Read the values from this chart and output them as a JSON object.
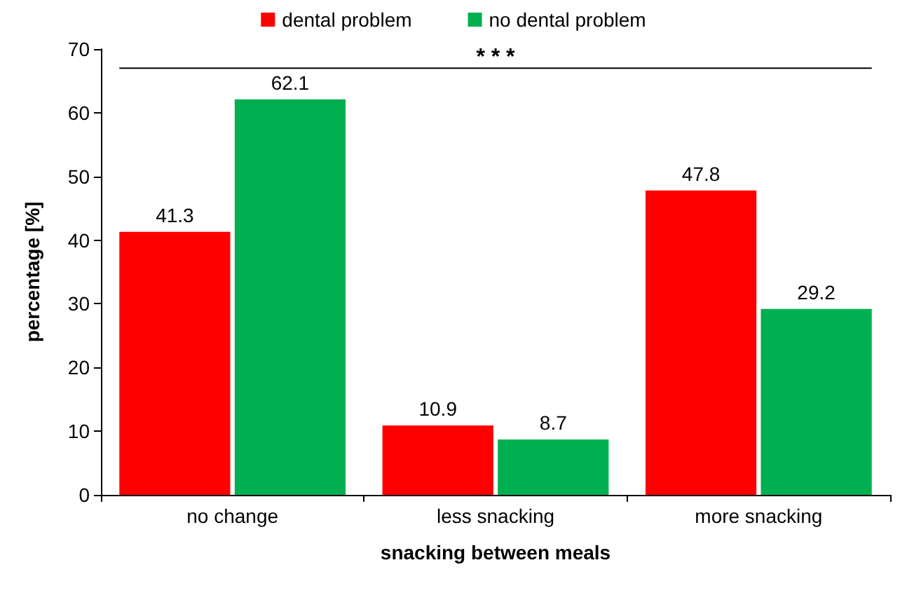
{
  "chart_data": {
    "type": "bar",
    "xlabel": "snacking between meals",
    "ylabel": "percentage [%]",
    "categories": [
      "no change",
      "less snacking",
      "more snacking"
    ],
    "series": [
      {
        "name": "dental problem",
        "color": "#ff0000",
        "values": [
          41.3,
          10.9,
          47.8
        ]
      },
      {
        "name": "no dental problem",
        "color": "#00b050",
        "values": [
          62.1,
          8.7,
          29.2
        ]
      }
    ],
    "ylim": [
      0,
      70
    ],
    "yticks": [
      0,
      10,
      20,
      30,
      40,
      50,
      60,
      70
    ],
    "grid": false,
    "legend": "top",
    "data_labels": true,
    "ref_lines": [
      {
        "axis": "y",
        "value": 67,
        "label": "* * *",
        "color": "#000000",
        "line_style": "solid"
      }
    ]
  }
}
